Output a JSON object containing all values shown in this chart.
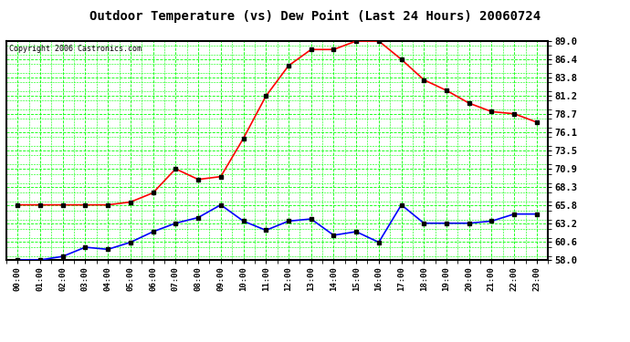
{
  "title": "Outdoor Temperature (vs) Dew Point (Last 24 Hours) 20060724",
  "copyright": "Copyright 2006 Castronics.com",
  "x_labels": [
    "00:00",
    "01:00",
    "02:00",
    "03:00",
    "04:00",
    "05:00",
    "06:00",
    "07:00",
    "08:00",
    "09:00",
    "10:00",
    "11:00",
    "12:00",
    "13:00",
    "14:00",
    "15:00",
    "16:00",
    "17:00",
    "18:00",
    "19:00",
    "20:00",
    "21:00",
    "22:00",
    "23:00"
  ],
  "temp_red": [
    65.8,
    65.8,
    65.8,
    65.8,
    65.8,
    66.2,
    67.5,
    70.9,
    69.4,
    69.8,
    75.2,
    81.2,
    85.5,
    87.8,
    87.8,
    89.0,
    89.0,
    86.4,
    83.5,
    82.0,
    80.2,
    79.0,
    78.7,
    77.5
  ],
  "dew_blue": [
    58.0,
    58.0,
    58.5,
    59.8,
    59.5,
    60.5,
    62.0,
    63.2,
    64.0,
    65.8,
    63.5,
    62.2,
    63.5,
    63.8,
    61.5,
    62.0,
    60.5,
    65.8,
    63.2,
    63.2,
    63.2,
    63.5,
    64.5,
    64.5
  ],
  "ylim_min": 58.0,
  "ylim_max": 89.0,
  "yticks": [
    58.0,
    60.6,
    63.2,
    65.8,
    68.3,
    70.9,
    73.5,
    76.1,
    78.7,
    81.2,
    83.8,
    86.4,
    89.0
  ],
  "bg_color": "#ffffff",
  "plot_bg": "#ffffff",
  "grid_color": "#00ff00",
  "grid_minor_color": "#00cc00",
  "temp_color": "#ff0000",
  "dew_color": "#0000ff",
  "title_color": "#000000",
  "marker_size": 3,
  "line_width": 1.2
}
